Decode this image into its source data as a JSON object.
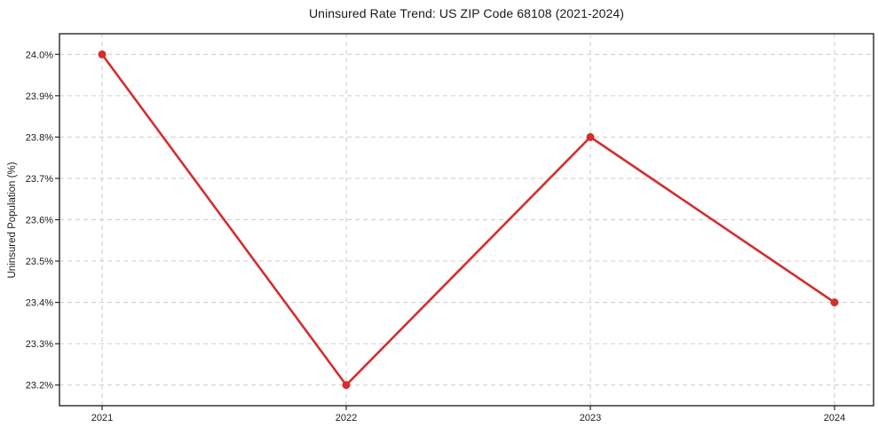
{
  "window": {
    "background": "#ffffff"
  },
  "chart_data": {
    "type": "line",
    "title": "Uninsured Rate Trend: US ZIP Code 68108 (2021-2024)",
    "xlabel": "",
    "ylabel": "Uninsured Population (%)",
    "x": [
      "2021",
      "2022",
      "2023",
      "2024"
    ],
    "series": [
      {
        "name": "Uninsured rate",
        "values": [
          24.0,
          23.2,
          23.8,
          23.4
        ],
        "color": "#d32f2f",
        "marker": "circle"
      }
    ],
    "y_ticks": [
      23.2,
      23.3,
      23.4,
      23.5,
      23.6,
      23.7,
      23.8,
      23.9,
      24.0
    ],
    "y_tick_labels": [
      "23.2%",
      "23.3%",
      "23.4%",
      "23.5%",
      "23.6%",
      "23.7%",
      "23.8%",
      "23.9%",
      "24.0%"
    ],
    "ylim": [
      23.15,
      24.05
    ],
    "grid": true,
    "grid_line_style": "dashed",
    "legend": "none",
    "colors": {
      "grid": "#cccccc",
      "spine": "#262626",
      "tick": "#262626",
      "text": "#1a1a1a",
      "background": "#ffffff"
    }
  }
}
